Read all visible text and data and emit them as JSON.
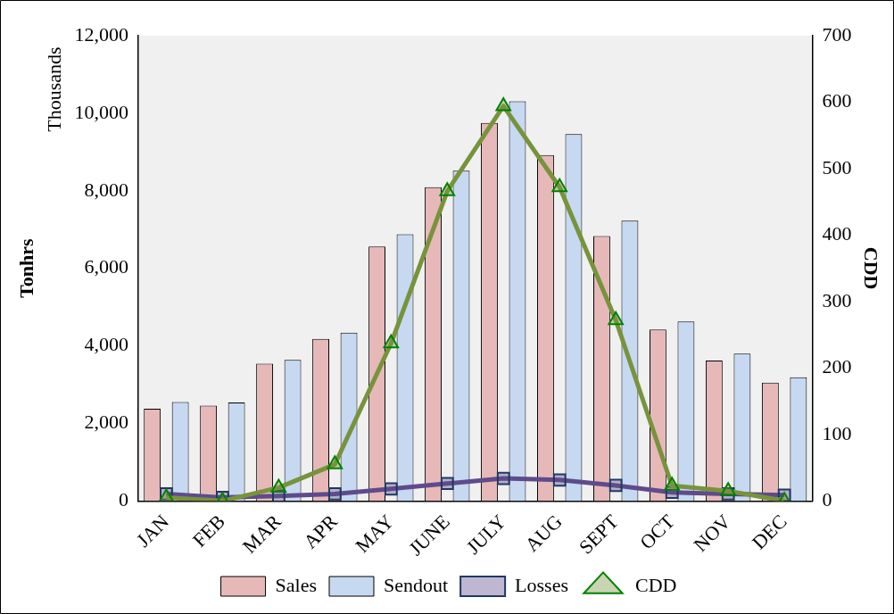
{
  "chart_data": {
    "type": "bar",
    "ylabel": "Tonhrs",
    "y2label": "CDD",
    "annotations": [
      "Thousands"
    ],
    "categories": [
      "JAN",
      "FEB",
      "MAR",
      "APR",
      "MAY",
      "JUNE",
      "JULY",
      "AUG",
      "SEPT",
      "OCT",
      "NOV",
      "DEC"
    ],
    "series": [
      {
        "name": "Sales",
        "color": "#e6b9b8",
        "values": [
          2380,
          2460,
          3540,
          4180,
          6560,
          8090,
          9750,
          8920,
          6830,
          4420,
          3620,
          3050
        ]
      },
      {
        "name": "Sendout",
        "color": "#c6d9f1",
        "values": [
          2550,
          2540,
          3640,
          4340,
          6880,
          8520,
          10310,
          9460,
          7230,
          4630,
          3800,
          3190
        ]
      },
      {
        "name": "Losses",
        "type": "line",
        "color": "#5f4b8b",
        "marker": "square",
        "values": [
          180,
          90,
          130,
          180,
          310,
          450,
          580,
          540,
          400,
          220,
          180,
          150
        ]
      },
      {
        "name": "CDD",
        "type": "line",
        "color": "#77933c",
        "marker": "triangle",
        "axis": "y2",
        "values": [
          5,
          0,
          20,
          55,
          237,
          466,
          594,
          472,
          272,
          23,
          15,
          0
        ]
      }
    ],
    "ylim": [
      0,
      12000
    ],
    "yticks": [
      {
        "value": 0,
        "label": "0"
      },
      {
        "value": 2000,
        "label": "2,000"
      },
      {
        "value": 4000,
        "label": "4,000"
      },
      {
        "value": 6000,
        "label": "6,000"
      },
      {
        "value": 8000,
        "label": "8,000"
      },
      {
        "value": 10000,
        "label": "10,000"
      },
      {
        "value": 12000,
        "label": "12,000"
      }
    ],
    "y2lim": [
      0,
      700
    ],
    "y2ticks": [
      0,
      100,
      200,
      300,
      400,
      500,
      600,
      700
    ],
    "grid": false,
    "legend": "bottom"
  }
}
